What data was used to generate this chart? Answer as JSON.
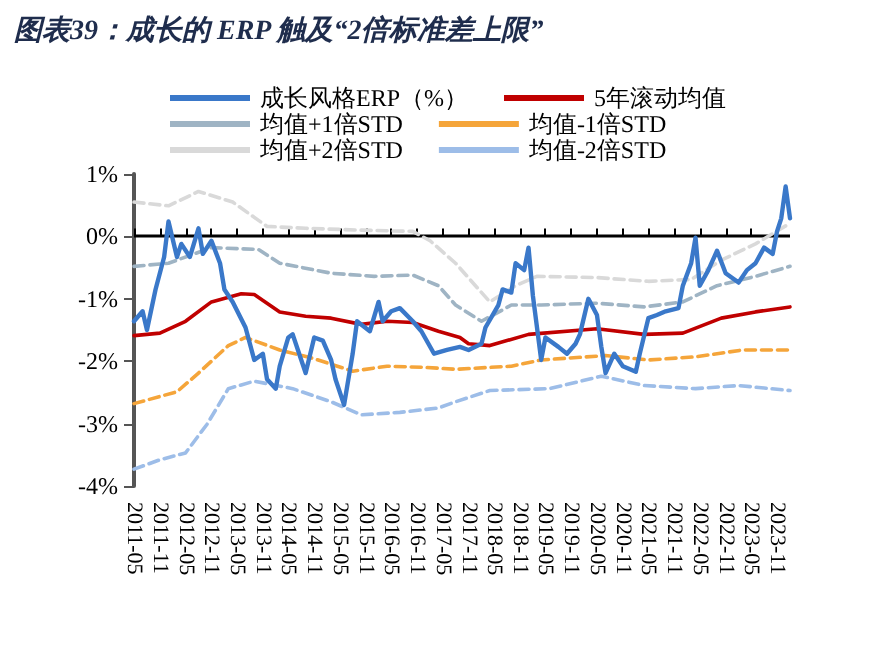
{
  "chart_data": {
    "type": "line",
    "title": "图表39：成长的 ERP 触及“2倍标准差上限”",
    "xlim": [
      "2011-05",
      "2024-02"
    ],
    "xticks": [
      "2011-05",
      "2011-11",
      "2012-05",
      "2012-11",
      "2013-05",
      "2013-11",
      "2014-05",
      "2014-11",
      "2015-05",
      "2015-11",
      "2016-05",
      "2016-11",
      "2017-05",
      "2017-11",
      "2018-05",
      "2018-11",
      "2019-05",
      "2019-11",
      "2020-05",
      "2020-11",
      "2021-05",
      "2021-11",
      "2022-05",
      "2022-11",
      "2023-05",
      "2023-11"
    ],
    "ylim": [
      -4,
      1
    ],
    "yticks": [
      {
        "value": -4,
        "label": "-4%"
      },
      {
        "value": -3,
        "label": "-3%"
      },
      {
        "value": -2,
        "label": "-2%"
      },
      {
        "value": -1,
        "label": "-1%"
      },
      {
        "value": 0,
        "label": "0%"
      },
      {
        "value": 1,
        "label": "1%"
      }
    ],
    "grid": false,
    "legend": "top",
    "marker": "none",
    "ref_lines": [
      {
        "axis": "y",
        "value": 0,
        "color": "#000000"
      }
    ],
    "series": [
      {
        "name": "成长风格ERP（%）",
        "color": "#3a78c9",
        "line_style": "solid",
        "x": [
          "2011-05",
          "2011-07",
          "2011-08",
          "2011-10",
          "2011-12",
          "2012-01",
          "2012-03",
          "2012-04",
          "2012-06",
          "2012-08",
          "2012-09",
          "2012-11",
          "2013-01",
          "2013-02",
          "2013-04",
          "2013-07",
          "2013-09",
          "2013-11",
          "2013-12",
          "2014-02",
          "2014-03",
          "2014-05",
          "2014-06",
          "2014-08",
          "2014-09",
          "2014-11",
          "2015-01",
          "2015-03",
          "2015-04",
          "2015-06",
          "2015-08",
          "2015-09",
          "2015-12",
          "2016-02",
          "2016-03",
          "2016-05",
          "2016-07",
          "2016-10",
          "2016-12",
          "2017-03",
          "2017-06",
          "2017-09",
          "2017-11",
          "2018-02",
          "2018-03",
          "2018-06",
          "2018-07",
          "2018-09",
          "2018-10",
          "2018-12",
          "2019-01",
          "2019-02",
          "2019-04",
          "2019-05",
          "2019-08",
          "2019-10",
          "2019-12",
          "2020-01",
          "2020-03",
          "2020-05",
          "2020-06",
          "2020-07",
          "2020-09",
          "2020-11",
          "2021-02",
          "2021-03",
          "2021-05",
          "2021-07",
          "2021-09",
          "2021-12",
          "2022-01",
          "2022-03",
          "2022-04",
          "2022-05",
          "2022-07",
          "2022-09",
          "2022-11",
          "2023-02",
          "2023-04",
          "2023-06",
          "2023-08",
          "2023-10",
          "2023-11",
          "2023-12",
          "2024-01",
          "2024-02"
        ],
        "values": [
          -1.36,
          -1.2,
          -1.5,
          -0.85,
          -0.33,
          0.24,
          -0.33,
          -0.12,
          -0.33,
          0.13,
          -0.28,
          -0.07,
          -0.43,
          -0.85,
          -1.05,
          -1.46,
          -1.98,
          -1.88,
          -2.29,
          -2.44,
          -2.08,
          -1.62,
          -1.57,
          -1.98,
          -2.19,
          -1.62,
          -1.67,
          -1.98,
          -2.29,
          -2.7,
          -1.88,
          -1.36,
          -1.52,
          -1.05,
          -1.36,
          -1.2,
          -1.15,
          -1.36,
          -1.52,
          -1.88,
          -1.82,
          -1.77,
          -1.82,
          -1.72,
          -1.46,
          -1.1,
          -0.85,
          -0.9,
          -0.43,
          -0.54,
          -0.18,
          -0.95,
          -1.98,
          -1.62,
          -1.77,
          -1.88,
          -1.72,
          -1.57,
          -1.0,
          -1.26,
          -1.77,
          -2.19,
          -1.88,
          -2.08,
          -2.17,
          -1.88,
          -1.31,
          -1.26,
          -1.2,
          -1.15,
          -0.79,
          -0.43,
          -0.02,
          -0.79,
          -0.54,
          -0.23,
          -0.59,
          -0.74,
          -0.54,
          -0.43,
          -0.18,
          -0.28,
          0.08,
          0.29,
          0.8,
          0.29
        ]
      },
      {
        "name": "5年滚动均值",
        "color": "#c00000",
        "line_style": "solid",
        "x": [
          "2011-05",
          "2011-11",
          "2012-05",
          "2012-11",
          "2013-06",
          "2013-09",
          "2014-03",
          "2014-09",
          "2015-03",
          "2015-10",
          "2016-04",
          "2016-10",
          "2017-04",
          "2017-09",
          "2017-11",
          "2018-04",
          "2019-01",
          "2020-05",
          "2021-04",
          "2022-01",
          "2022-10",
          "2023-06",
          "2024-02"
        ],
        "values": [
          -1.59,
          -1.55,
          -1.36,
          -1.05,
          -0.92,
          -0.93,
          -1.21,
          -1.28,
          -1.31,
          -1.41,
          -1.36,
          -1.38,
          -1.52,
          -1.62,
          -1.72,
          -1.75,
          -1.57,
          -1.48,
          -1.57,
          -1.55,
          -1.31,
          -1.21,
          -1.13
        ]
      },
      {
        "name": "均值+1倍STD",
        "color": "#9fb4c4",
        "line_style": "dashed",
        "x": [
          "2011-05",
          "2012-01",
          "2012-11",
          "2013-10",
          "2014-03",
          "2015-03",
          "2016-01",
          "2016-10",
          "2017-04",
          "2017-08",
          "2018-02",
          "2018-09",
          "2019-04",
          "2020-05",
          "2021-04",
          "2022-01",
          "2022-09",
          "2023-06",
          "2024-02"
        ],
        "values": [
          -0.48,
          -0.43,
          -0.18,
          -0.21,
          -0.43,
          -0.59,
          -0.64,
          -0.62,
          -0.79,
          -1.1,
          -1.36,
          -1.1,
          -1.1,
          -1.07,
          -1.13,
          -1.05,
          -0.79,
          -0.64,
          -0.48
        ]
      },
      {
        "name": "均值-1倍STD",
        "color": "#f5a53a",
        "line_style": "dashed",
        "x": [
          "2011-05",
          "2012-03",
          "2012-08",
          "2013-03",
          "2013-07",
          "2014-03",
          "2014-11",
          "2015-08",
          "2016-04",
          "2017-01",
          "2017-08",
          "2018-09",
          "2019-04",
          "2020-07",
          "2021-05",
          "2022-04",
          "2023-03",
          "2024-02"
        ],
        "values": [
          -2.68,
          -2.49,
          -2.19,
          -1.75,
          -1.62,
          -1.82,
          -1.96,
          -2.16,
          -2.08,
          -2.1,
          -2.13,
          -2.08,
          -1.98,
          -1.91,
          -1.98,
          -1.93,
          -1.82,
          -1.82
        ]
      },
      {
        "name": "均值+2倍STD",
        "color": "#d9d9d9",
        "line_style": "dashed",
        "x": [
          "2011-05",
          "2012-01",
          "2012-08",
          "2013-04",
          "2013-12",
          "2014-09",
          "2015-10",
          "2016-10",
          "2017-02",
          "2017-08",
          "2018-04",
          "2018-10",
          "2019-03",
          "2020-05",
          "2021-05",
          "2022-03",
          "2022-10",
          "2023-06",
          "2024-02"
        ],
        "values": [
          0.55,
          0.49,
          0.72,
          0.55,
          0.16,
          0.13,
          0.1,
          0.08,
          -0.07,
          -0.43,
          -1.05,
          -0.79,
          -0.64,
          -0.66,
          -0.72,
          -0.69,
          -0.38,
          -0.12,
          0.21
        ]
      },
      {
        "name": "均值-2倍STD",
        "color": "#9dbde8",
        "line_style": "dashed",
        "x": [
          "2011-05",
          "2011-11",
          "2012-05",
          "2012-10",
          "2013-03",
          "2013-09",
          "2014-06",
          "2015-03",
          "2015-10",
          "2016-07",
          "2017-04",
          "2017-08",
          "2018-04",
          "2019-06",
          "2020-06",
          "2021-04",
          "2022-04",
          "2023-02",
          "2024-02"
        ],
        "values": [
          -3.73,
          -3.58,
          -3.47,
          -3.01,
          -2.44,
          -2.32,
          -2.44,
          -2.65,
          -2.86,
          -2.82,
          -2.75,
          -2.65,
          -2.47,
          -2.44,
          -2.24,
          -2.39,
          -2.44,
          -2.39,
          -2.47
        ]
      }
    ]
  }
}
